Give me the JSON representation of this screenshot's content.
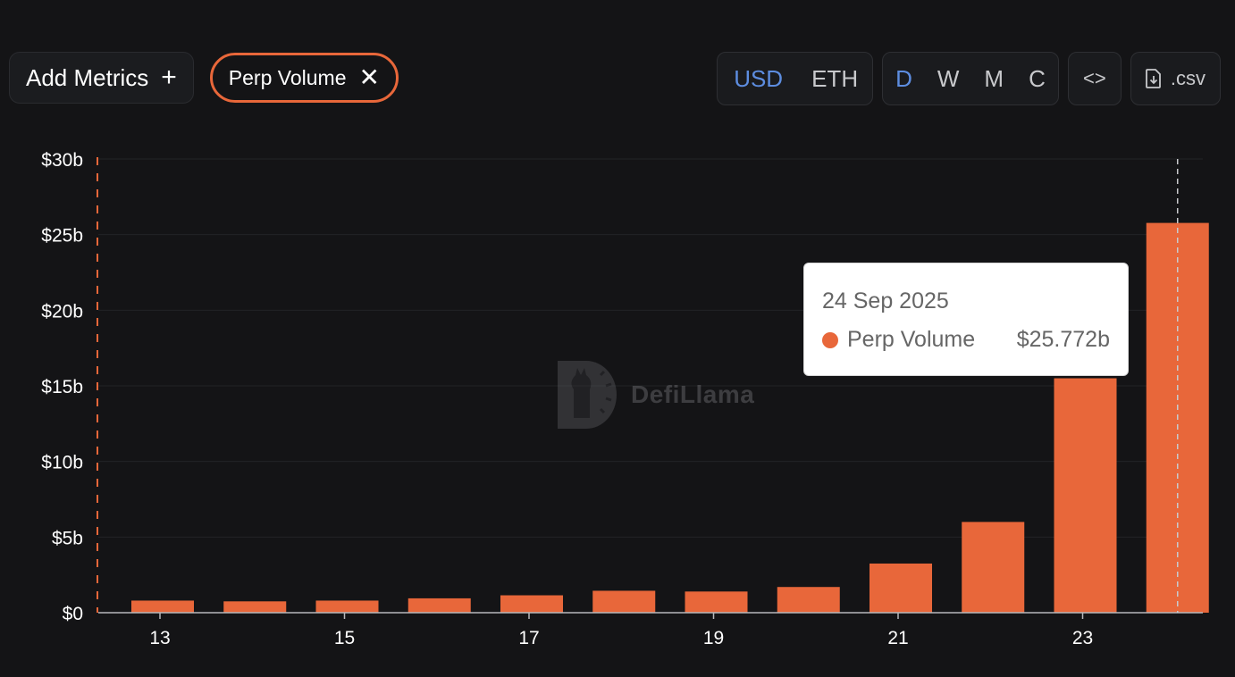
{
  "toolbar": {
    "add_metrics_label": "Add Metrics",
    "add_icon": "plus-icon",
    "active_metric_label": "Perp Volume",
    "remove_icon": "close-icon"
  },
  "denomination": {
    "options": [
      "USD",
      "ETH"
    ],
    "selected": "USD"
  },
  "period": {
    "options": [
      "D",
      "W",
      "M",
      "C"
    ],
    "selected": "D"
  },
  "embed": {
    "icon": "code-icon",
    "label": "<>"
  },
  "download": {
    "icon": "file-download-icon",
    "label": ".csv"
  },
  "watermark": {
    "text": "DefiLlama",
    "icon": "llama-logo-icon"
  },
  "colors": {
    "accent": "#e8673a",
    "active": "#5d8de0",
    "background": "#141416"
  },
  "tooltip": {
    "date": "24 Sep 2025",
    "series_name": "Perp Volume",
    "value": "$25.772b"
  },
  "chart_data": {
    "type": "bar",
    "categories": [
      "13",
      "14",
      "15",
      "16",
      "17",
      "18",
      "19",
      "20",
      "21",
      "22",
      "23",
      "24"
    ],
    "x_tick_labels": [
      "13",
      "15",
      "17",
      "19",
      "21",
      "23"
    ],
    "series": [
      {
        "name": "Perp Volume",
        "color": "#e8673a",
        "values": [
          0.8,
          0.75,
          0.8,
          0.95,
          1.15,
          1.45,
          1.4,
          1.7,
          3.25,
          6.0,
          15.5,
          25.772
        ]
      }
    ],
    "y_tick_labels": [
      "$0",
      "$5b",
      "$10b",
      "$15b",
      "$20b",
      "$25b",
      "$30b"
    ],
    "ylim": [
      0,
      30
    ],
    "title": "",
    "xlabel": "",
    "ylabel": "",
    "grid": true,
    "highlighted_category": "24"
  }
}
